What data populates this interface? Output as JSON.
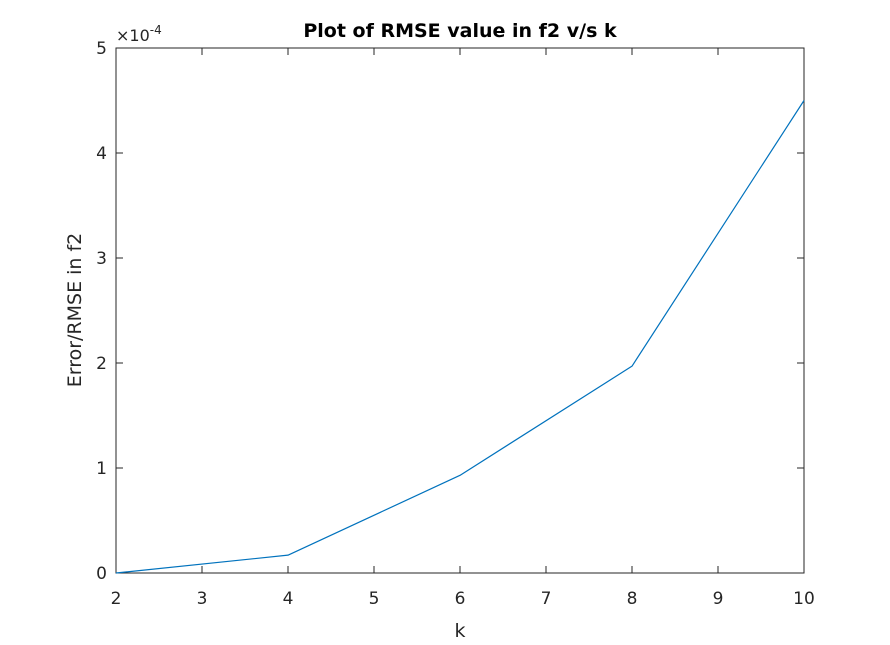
{
  "chart_data": {
    "type": "line",
    "title": "Plot of RMSE value in f2 v/s k",
    "xlabel": "k",
    "ylabel": "Error/RMSE in f2",
    "xlim": [
      2,
      10
    ],
    "ylim": [
      0,
      0.0005
    ],
    "xticks": [
      2,
      3,
      4,
      5,
      6,
      7,
      8,
      9,
      10
    ],
    "xtick_labels": [
      "2",
      "3",
      "4",
      "5",
      "6",
      "7",
      "8",
      "9",
      "10"
    ],
    "yticks": [
      0,
      0.0001,
      0.0002,
      0.0003,
      0.0004,
      0.0005
    ],
    "ytick_labels": [
      "0",
      "1",
      "2",
      "3",
      "4",
      "5"
    ],
    "y_exponent_base": "×10",
    "y_exponent": "-4",
    "grid": false,
    "series": [
      {
        "color": "#0072bd",
        "x": [
          2,
          4,
          6,
          8,
          10
        ],
        "y": [
          0.0,
          1.7e-05,
          9.3e-05,
          0.000197,
          0.00045
        ]
      }
    ]
  }
}
